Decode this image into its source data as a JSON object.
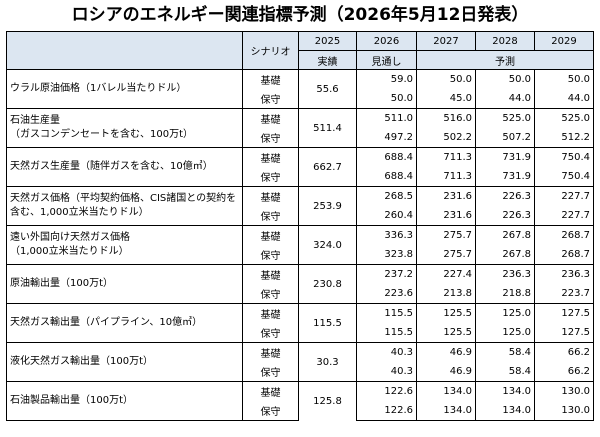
{
  "title": "ロシアのエネルギー関連指標予測（2026年5月12日発表）",
  "header": {
    "scenario": "シナリオ",
    "years": [
      "2025",
      "2026",
      "2027",
      "2028",
      "2029"
    ],
    "sub_2025": "実績",
    "sub_2026": "見通し",
    "sub_forecast": "予測"
  },
  "scenarios": {
    "base": "基礎",
    "conservative": "保守"
  },
  "rows": [
    {
      "label": "ウラル原油価格（1バレル当たりドル）",
      "actual": "55.6",
      "base": [
        "59.0",
        "50.0",
        "50.0",
        "50.0"
      ],
      "conservative": [
        "50.0",
        "45.0",
        "44.0",
        "44.0"
      ]
    },
    {
      "label": "石油生産量\n（ガスコンデンセートを含む、100万t）",
      "actual": "511.4",
      "base": [
        "511.0",
        "516.0",
        "525.0",
        "525.0"
      ],
      "conservative": [
        "497.2",
        "502.2",
        "507.2",
        "512.2"
      ]
    },
    {
      "label": "天然ガス生産量（随伴ガスを含む、10億㎥）",
      "actual": "662.7",
      "base": [
        "688.4",
        "711.3",
        "731.9",
        "750.4"
      ],
      "conservative": [
        "688.4",
        "711.3",
        "731.9",
        "750.4"
      ]
    },
    {
      "label": "天然ガス価格（平均契約価格、CIS諸国との契約を含む、1,000立米当たりドル）",
      "actual": "253.9",
      "base": [
        "268.5",
        "231.6",
        "226.3",
        "227.7"
      ],
      "conservative": [
        "260.4",
        "231.6",
        "226.3",
        "227.7"
      ]
    },
    {
      "label": "遠い外国向け天然ガス価格\n（1,000立米当たりドル）",
      "actual": "324.0",
      "base": [
        "336.3",
        "275.7",
        "267.8",
        "268.7"
      ],
      "conservative": [
        "323.8",
        "275.7",
        "267.8",
        "268.7"
      ]
    },
    {
      "label": "原油輸出量（100万t）",
      "actual": "230.8",
      "base": [
        "237.2",
        "227.4",
        "236.3",
        "236.3"
      ],
      "conservative": [
        "223.6",
        "213.8",
        "218.8",
        "223.7"
      ]
    },
    {
      "label": "天然ガス輸出量（パイプライン、10億㎥）",
      "actual": "115.5",
      "base": [
        "115.5",
        "125.5",
        "125.0",
        "127.5"
      ],
      "conservative": [
        "115.5",
        "125.5",
        "125.0",
        "127.5"
      ]
    },
    {
      "label": "液化天然ガス輸出量（100万t）",
      "actual": "30.3",
      "base": [
        "40.3",
        "46.9",
        "58.4",
        "66.2"
      ],
      "conservative": [
        "40.3",
        "46.9",
        "58.4",
        "66.2"
      ]
    },
    {
      "label": "石油製品輸出量（100万t）",
      "actual": "125.8",
      "base": [
        "122.6",
        "134.0",
        "134.0",
        "130.0"
      ],
      "conservative": [
        "122.6",
        "134.0",
        "134.0",
        "130.0"
      ]
    }
  ],
  "colors": {
    "header_bg": "#dce6f1",
    "border": "#000000"
  }
}
